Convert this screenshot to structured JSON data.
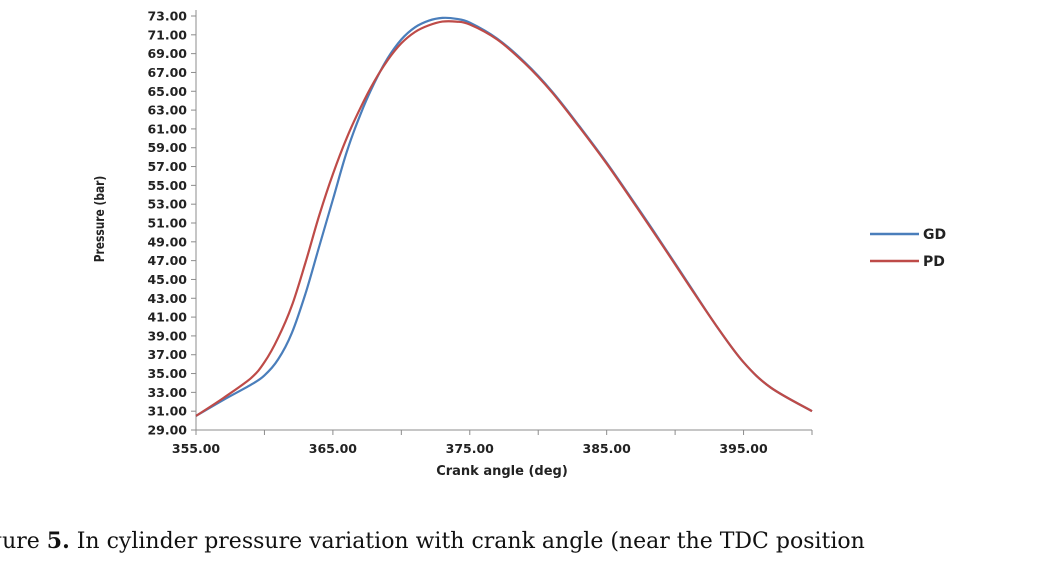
{
  "chart_data": {
    "type": "line",
    "xlabel": "Crank angle (deg)",
    "ylabel": "Pressure (bar)",
    "xlim": [
      355,
      400
    ],
    "ylim": [
      29,
      73
    ],
    "x_ticks": [
      "355.00",
      "365.00",
      "375.00",
      "385.00",
      "395.00"
    ],
    "y_ticks": [
      "29.00",
      "31.00",
      "33.00",
      "35.00",
      "37.00",
      "39.00",
      "41.00",
      "43.00",
      "45.00",
      "47.00",
      "49.00",
      "51.00",
      "53.00",
      "55.00",
      "57.00",
      "59.00",
      "61.00",
      "63.00",
      "65.00",
      "67.00",
      "69.00",
      "71.00",
      "73.00"
    ],
    "grid": false,
    "legend_position": "right",
    "series": [
      {
        "name": "GD",
        "color": "#4a7ebb",
        "x": [
          355,
          357,
          359,
          360,
          361,
          362,
          363,
          364,
          365,
          366,
          367,
          368,
          369,
          370,
          371,
          372,
          373,
          374,
          375,
          377,
          379,
          381,
          383,
          385,
          387,
          389,
          391,
          393,
          395,
          397,
          400
        ],
        "y": [
          30.5,
          32.2,
          33.8,
          34.8,
          36.5,
          39.3,
          43.5,
          48.5,
          53.5,
          58.5,
          62.5,
          65.8,
          68.5,
          70.5,
          71.8,
          72.5,
          72.8,
          72.7,
          72.3,
          70.6,
          68.1,
          65.0,
          61.3,
          57.4,
          53.2,
          48.9,
          44.5,
          40.1,
          36.2,
          33.5,
          31.0
        ]
      },
      {
        "name": "PD",
        "color": "#be4b48",
        "x": [
          355,
          357,
          359,
          360,
          361,
          362,
          363,
          364,
          365,
          366,
          367,
          368,
          369,
          370,
          371,
          372,
          373,
          374,
          375,
          377,
          379,
          381,
          383,
          385,
          387,
          389,
          391,
          393,
          395,
          397,
          400
        ],
        "y": [
          30.5,
          32.4,
          34.5,
          36.2,
          38.8,
          42.2,
          46.8,
          51.8,
          56.2,
          60.0,
          63.2,
          66.0,
          68.3,
          70.1,
          71.3,
          72.0,
          72.4,
          72.4,
          72.1,
          70.5,
          68.0,
          64.9,
          61.2,
          57.3,
          53.1,
          48.8,
          44.4,
          40.1,
          36.2,
          33.5,
          31.0
        ]
      }
    ]
  },
  "caption": {
    "prefix": "gure ",
    "number": "5.",
    "text": " In cylinder pressure variation with crank angle (near the TDC position"
  }
}
